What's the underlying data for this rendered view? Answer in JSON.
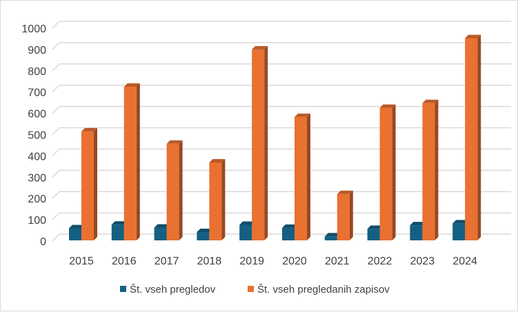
{
  "chart_data": {
    "type": "bar",
    "style": "3d-clustered-column",
    "categories": [
      "2015",
      "2016",
      "2017",
      "2018",
      "2019",
      "2020",
      "2021",
      "2022",
      "2023",
      "2024"
    ],
    "series": [
      {
        "name": "Št. vseh pregledov",
        "color": "#156082",
        "values": [
          60,
          77,
          63,
          42,
          76,
          62,
          22,
          57,
          74,
          83
        ]
      },
      {
        "name": "Št. vseh pregledanih zapisov",
        "color": "#E97132",
        "values": [
          515,
          725,
          457,
          369,
          900,
          583,
          221,
          626,
          648,
          953
        ]
      }
    ],
    "yticks": [
      0,
      100,
      200,
      300,
      400,
      500,
      600,
      700,
      800,
      900,
      1000
    ],
    "ylim": [
      0,
      1000
    ],
    "grid": true,
    "legend": "bottom",
    "title": "",
    "xlabel": "",
    "ylabel": ""
  }
}
